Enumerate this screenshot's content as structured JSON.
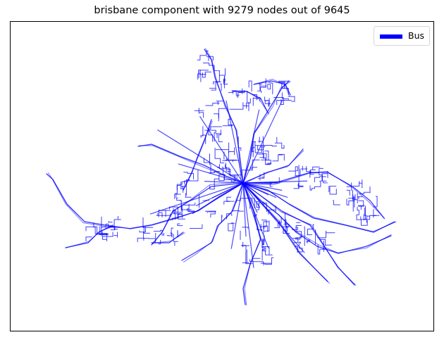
{
  "title": "brisbane component with 9279 nodes out of 9645",
  "legend": {
    "label": "Bus",
    "color": "#0000ff"
  },
  "network": {
    "city": "brisbane",
    "component_nodes": 9279,
    "total_nodes": 9645,
    "mode": "Bus",
    "edge_color": "#0000ff"
  }
}
